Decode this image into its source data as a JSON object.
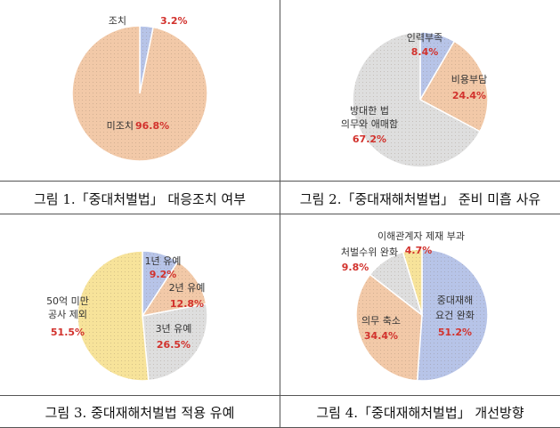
{
  "chart_data": [
    {
      "type": "pie",
      "caption": "그림 1.「중대처벌법」 대응조치 여부",
      "slices": [
        {
          "label": "조치",
          "value": 3.2,
          "value_text": "3.2%",
          "color": "#b7c4e8"
        },
        {
          "label": "미조치",
          "value": 96.8,
          "value_text": "96.8%",
          "color": "#f2c9a8"
        }
      ]
    },
    {
      "type": "pie",
      "caption": "그림 2.「중대재해처벌법」 준비 미흡 사유",
      "slices": [
        {
          "label": "인력부족",
          "value": 8.4,
          "value_text": "8.4%",
          "color": "#b7c4e8"
        },
        {
          "label": "비용부담",
          "value": 24.4,
          "value_text": "24.4%",
          "color": "#f2c9a8"
        },
        {
          "label": "방대한 법 의무와 애매함",
          "value": 67.2,
          "value_text": "67.2%",
          "color": "#dedede"
        }
      ]
    },
    {
      "type": "pie",
      "caption": "그림 3. 중대재해처벌법 적용 유예",
      "slices": [
        {
          "label": "1년 유예",
          "value": 9.2,
          "value_text": "9.2%",
          "color": "#b7c4e8"
        },
        {
          "label": "2년 유예",
          "value": 12.8,
          "value_text": "12.8%",
          "color": "#f2c9a8"
        },
        {
          "label": "3년 유예",
          "value": 26.5,
          "value_text": "26.5%",
          "color": "#dedede"
        },
        {
          "label": "50억 미만 공사 제외",
          "value": 51.5,
          "value_text": "51.5%",
          "color": "#f7e39a"
        }
      ]
    },
    {
      "type": "pie",
      "caption": "그림 4.「중대재해처벌법」 개선방향",
      "slices": [
        {
          "label": "중대재해 요건 완화",
          "value": 51.2,
          "value_text": "51.2%",
          "color": "#b7c4e8"
        },
        {
          "label": "의무 축소",
          "value": 34.4,
          "value_text": "34.4%",
          "color": "#f2c9a8"
        },
        {
          "label": "처벌수위 완화",
          "value": 9.8,
          "value_text": "9.8%",
          "color": "#dedede"
        },
        {
          "label": "이해관계자 제재 부과",
          "value": 4.7,
          "value_text": "4.7%",
          "color": "#f7e39a"
        }
      ]
    }
  ]
}
